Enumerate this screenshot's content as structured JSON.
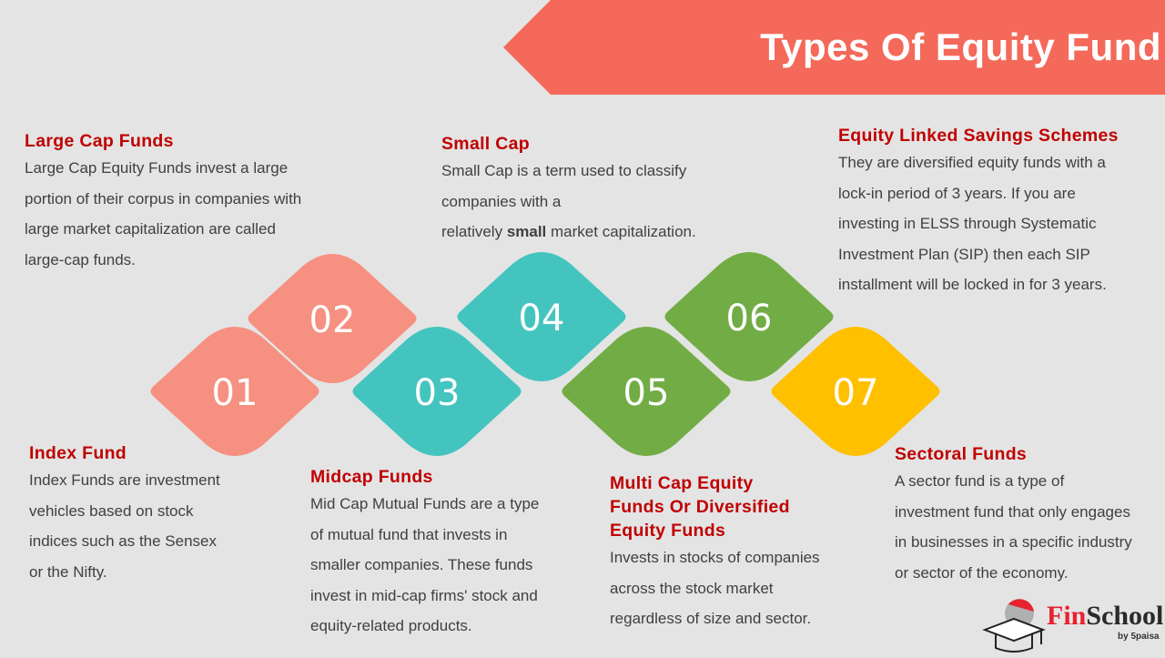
{
  "title": "Types Of Equity Fund",
  "colors": {
    "banner": "#f4695a",
    "heading": "#c00000",
    "salmon": "#f69080",
    "teal": "#44c4bf",
    "green": "#72ac45",
    "yellow": "#ffc000"
  },
  "shapes": [
    {
      "num": "01",
      "color": "#f69080"
    },
    {
      "num": "02",
      "color": "#f69080"
    },
    {
      "num": "03",
      "color": "#44c4bf"
    },
    {
      "num": "04",
      "color": "#44c4bf"
    },
    {
      "num": "05",
      "color": "#72ac45"
    },
    {
      "num": "06",
      "color": "#72ac45"
    },
    {
      "num": "07",
      "color": "#ffc000"
    }
  ],
  "funds": {
    "large_cap": {
      "title": "Large Cap Funds",
      "lines": [
        "Large Cap Equity Funds invest a large",
        "portion of their corpus in companies with",
        "large market capitalization are called",
        "large-cap funds."
      ]
    },
    "small_cap": {
      "title": "Small Cap",
      "lines": [
        "Small Cap is a term used to classify",
        "companies with a"
      ],
      "last_pre": "relatively ",
      "last_bold": "small",
      "last_post": " market capitalization."
    },
    "elss": {
      "title": "Equity Linked Savings Schemes",
      "lines": [
        "They are diversified equity funds with a",
        "lock-in period of 3 years. If you are",
        "investing in ELSS through Systematic",
        "Investment Plan (SIP) then each SIP",
        "installment will be locked in for 3 years."
      ]
    },
    "index": {
      "title": "Index Fund",
      "lines": [
        "Index Funds are investment",
        "vehicles based on stock",
        "indices such as the Sensex",
        "or the Nifty."
      ]
    },
    "midcap": {
      "title": "Midcap Funds",
      "lines": [
        "Mid Cap Mutual Funds are a type",
        "of mutual fund that invests in",
        "smaller companies. These funds",
        "invest in mid-cap firms' stock and",
        "equity-related products."
      ]
    },
    "multicap": {
      "title_lines": [
        "Multi Cap Equity",
        "Funds Or Diversified",
        "Equity Funds"
      ],
      "lines": [
        "Invests in stocks of companies",
        "across the stock market",
        "regardless of size and sector."
      ]
    },
    "sectoral": {
      "title": "Sectoral Funds",
      "lines": [
        "A sector fund is a type of",
        "investment fund that only engages",
        "in businesses in a specific industry",
        "or sector of the economy."
      ]
    }
  },
  "logo": {
    "fin": "Fin",
    "school": "School",
    "by": "by 5paisa"
  }
}
